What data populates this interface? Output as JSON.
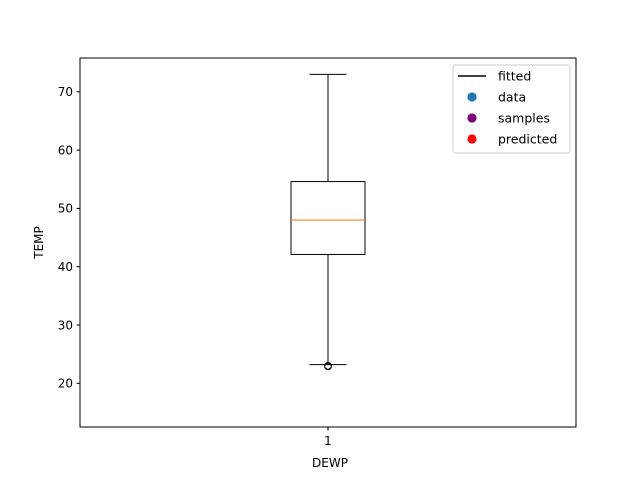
{
  "chart_data": {
    "type": "box",
    "xlabel": "DEWP",
    "ylabel": "TEMP",
    "categories": [
      "1"
    ],
    "ylim": [
      12.5,
      75.8
    ],
    "yticks": [
      20,
      30,
      40,
      50,
      60,
      70
    ],
    "boxes": [
      {
        "category": "1",
        "whisker_low": 23.2,
        "q1": 42.1,
        "median": 48.0,
        "q3": 54.6,
        "whisker_high": 73.0,
        "outliers": [
          23.0,
          22.9
        ]
      }
    ],
    "colors": {
      "box": "#000000",
      "median": "#ff7f0e",
      "frame": "#000000"
    },
    "legend": {
      "placement": "upper-right",
      "entries": [
        {
          "label": "fitted",
          "marker": "line",
          "color": "#000000"
        },
        {
          "label": "data",
          "marker": "circle",
          "color": "#1f77b4"
        },
        {
          "label": "samples",
          "marker": "circle",
          "color": "#800080"
        },
        {
          "label": "predicted",
          "marker": "circle",
          "color": "#ff0000"
        }
      ]
    }
  }
}
